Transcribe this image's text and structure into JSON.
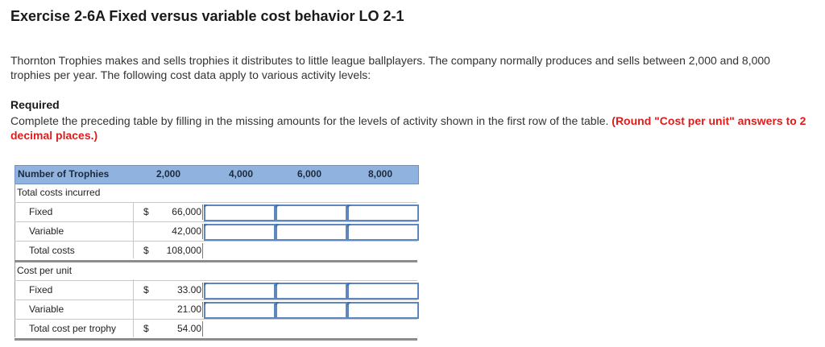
{
  "title": "Exercise 2-6A Fixed versus variable cost behavior LO 2-1",
  "intro": "Thornton Trophies makes and sells trophies it distributes to little league ballplayers. The company normally produces and sells between 2,000 and 8,000 trophies per year. The following cost data apply to various activity levels:",
  "required": {
    "heading": "Required",
    "text": "Complete the preceding table by filling in the missing amounts for the levels of activity shown in the first row of the table.",
    "highlight": "(Round \"Cost per unit\" answers to 2 decimal places.)"
  },
  "colors": {
    "header_bg": "#8fb3de",
    "input_border": "#5e88bd",
    "highlight": "#e01b1b"
  },
  "table": {
    "header": {
      "label": "Number of Trophies",
      "levels": [
        "2,000",
        "4,000",
        "6,000",
        "8,000"
      ]
    },
    "sections": {
      "total_costs_incurred": "Total costs incurred",
      "cost_per_unit": "Cost per unit"
    },
    "rows": {
      "fixed": {
        "label": "Fixed",
        "dollar": "$",
        "value": "66,000"
      },
      "variable": {
        "label": "Variable",
        "dollar": "",
        "value": "42,000"
      },
      "total": {
        "label": "Total costs",
        "dollar": "$",
        "value": "108,000"
      },
      "unit_fixed": {
        "label": "Fixed",
        "dollar": "$",
        "value": "33.00"
      },
      "unit_variable": {
        "label": "Variable",
        "dollar": "",
        "value": "21.00"
      },
      "unit_total": {
        "label": "Total cost per trophy",
        "dollar": "$",
        "value": "54.00"
      }
    }
  }
}
